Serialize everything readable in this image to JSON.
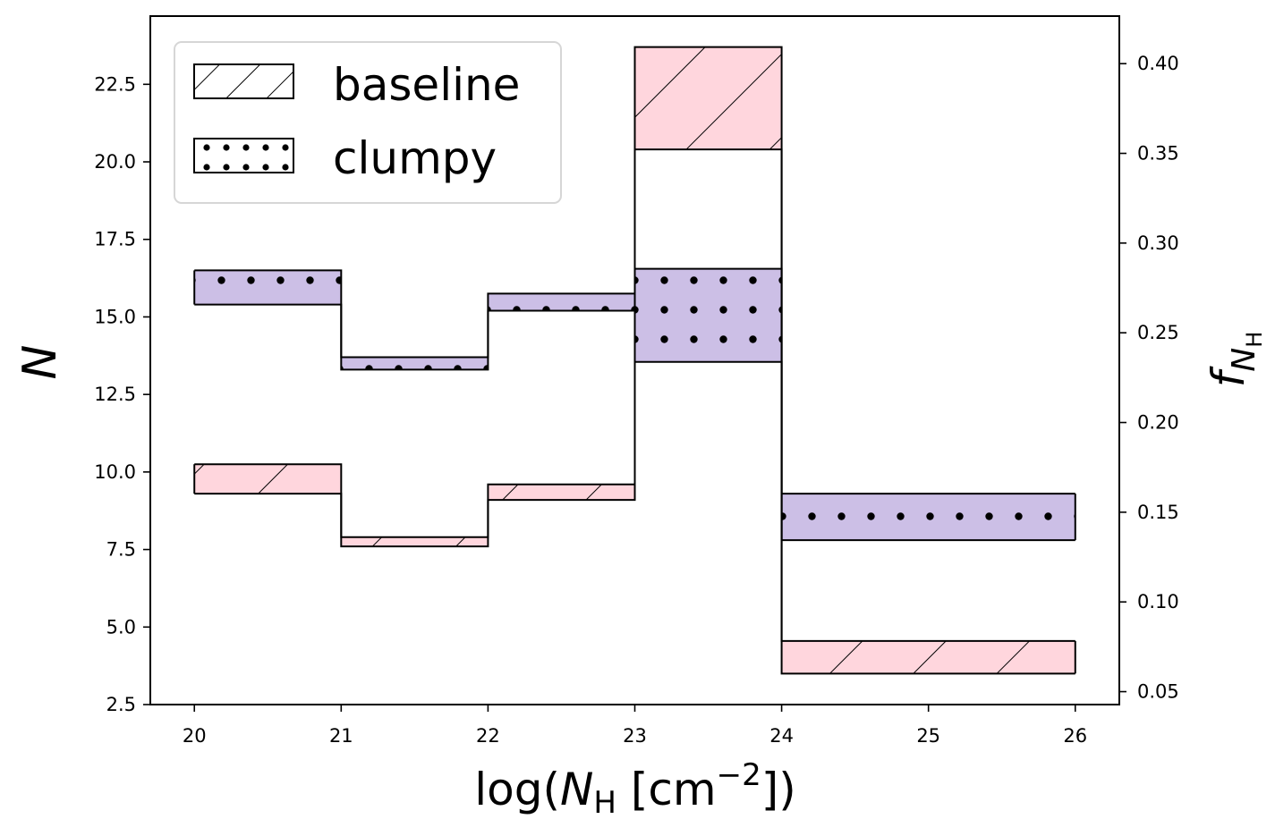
{
  "chart_data": {
    "type": "area",
    "x_bins": [
      20,
      21,
      22,
      23,
      24,
      26
    ],
    "xlabel": "log(N_H [cm^-2])",
    "ylabel": "N",
    "ylabel_right": "f_{N_H}",
    "xlim": [
      19.7,
      26.3
    ],
    "ylim": [
      2.5,
      24.7
    ],
    "ylim_right": [
      0.0428,
      0.4265
    ],
    "xticks": [
      "20",
      "21",
      "22",
      "23",
      "24",
      "25",
      "26"
    ],
    "yticks": [
      "2.5",
      "5.0",
      "7.5",
      "10.0",
      "12.5",
      "15.0",
      "17.5",
      "20.0",
      "22.5"
    ],
    "yticks_right": [
      "0.05",
      "0.10",
      "0.15",
      "0.20",
      "0.25",
      "0.30",
      "0.35",
      "0.40"
    ],
    "series": [
      {
        "name": "baseline",
        "hatch": "diagonal",
        "color": "#ffc0cb",
        "lower": [
          9.3,
          7.6,
          9.1,
          20.4,
          3.5
        ],
        "upper": [
          10.25,
          7.9,
          9.6,
          23.7,
          4.55
        ]
      },
      {
        "name": "clumpy",
        "hatch": "dots",
        "color": "#b19cd9",
        "lower": [
          15.4,
          13.3,
          15.2,
          13.55,
          7.8
        ],
        "upper": [
          16.5,
          13.7,
          15.75,
          16.55,
          9.3
        ]
      }
    ],
    "overlap_color": "#d0a4c7",
    "legend": {
      "placement": "top-left",
      "entries": [
        "baseline",
        "clumpy"
      ]
    },
    "grid": false
  }
}
